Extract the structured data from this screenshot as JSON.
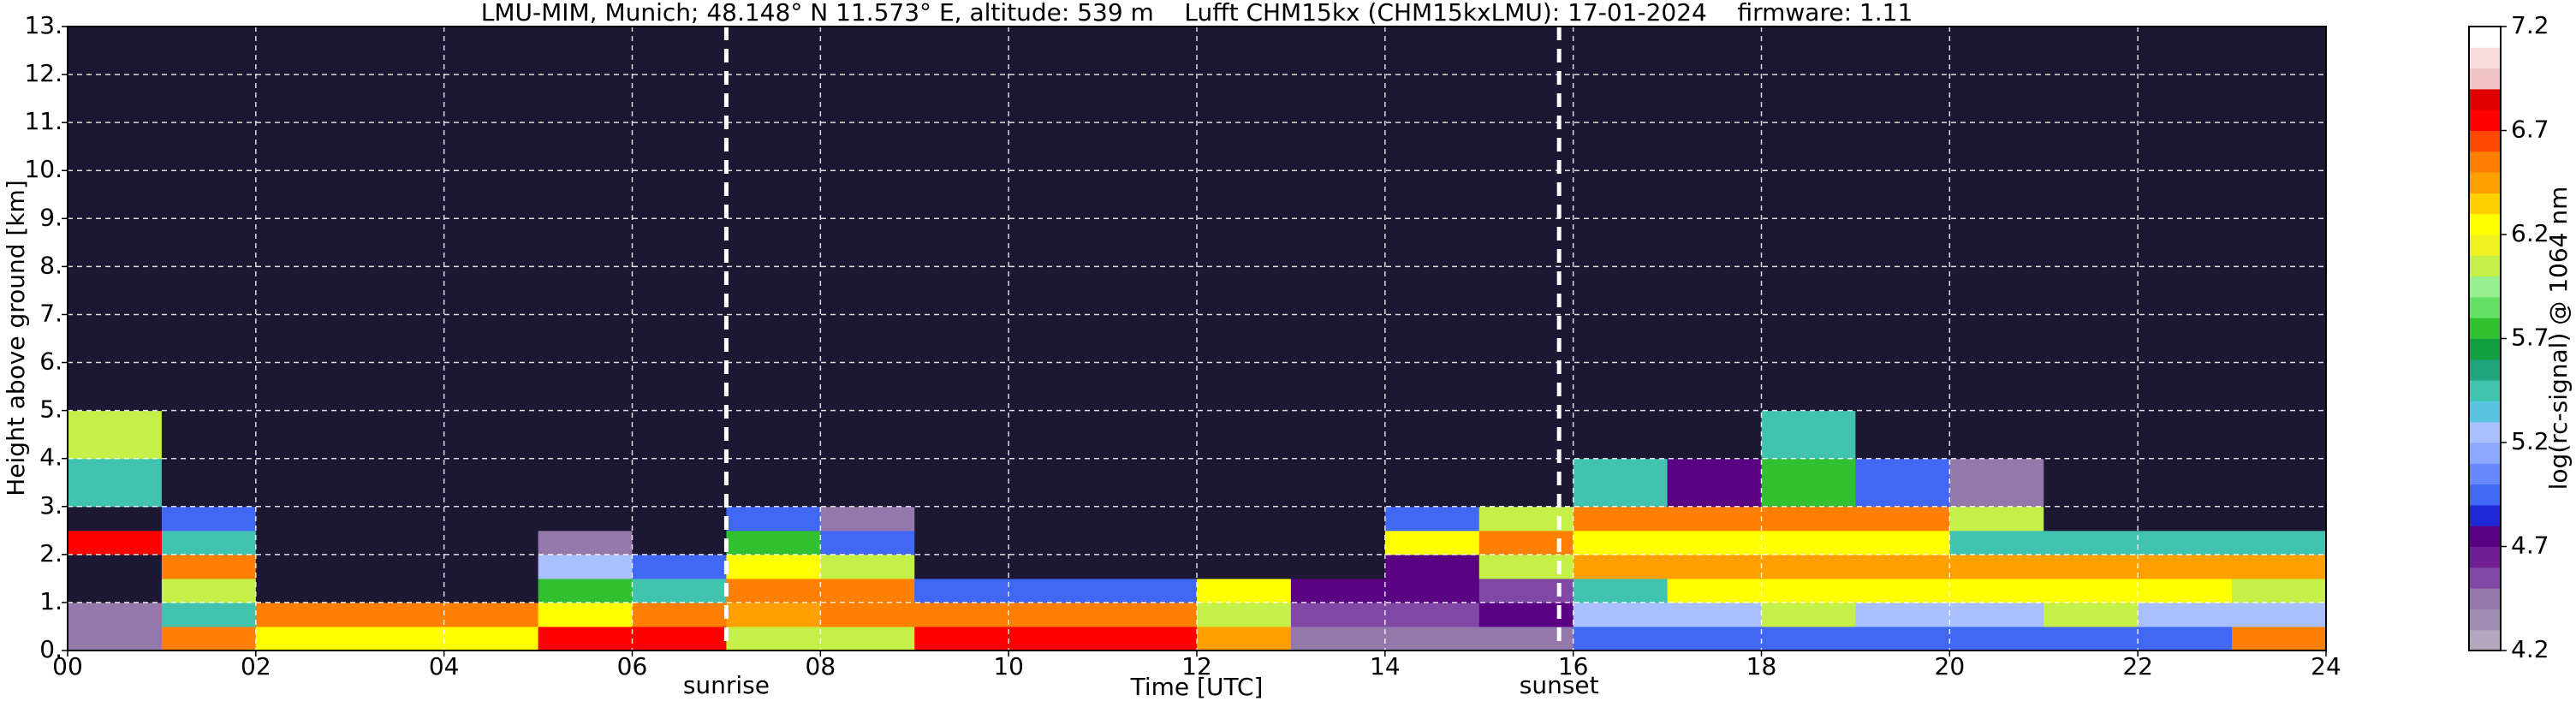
{
  "chart_data": {
    "type": "heatmap",
    "title": "LMU-MIM, Munich; 48.148° N 11.573° E, altitude: 539 m    Lufft CHM15kx (CHM15kxLMU): 17-01-2024    firmware: 1.11",
    "xlabel": "Time [UTC]",
    "ylabel": "Height above ground [km]",
    "colorbar_label": "log(rc-signal) @ 1064 nm",
    "xlim": [
      0,
      24
    ],
    "xticks": [
      {
        "value": 0,
        "label": "00"
      },
      {
        "value": 2,
        "label": "02"
      },
      {
        "value": 4,
        "label": "04"
      },
      {
        "value": 6,
        "label": "06"
      },
      {
        "value": 8,
        "label": "08"
      },
      {
        "value": 10,
        "label": "10"
      },
      {
        "value": 12,
        "label": "12"
      },
      {
        "value": 14,
        "label": "14"
      },
      {
        "value": 16,
        "label": "16"
      },
      {
        "value": 18,
        "label": "18"
      },
      {
        "value": 20,
        "label": "20"
      },
      {
        "value": 22,
        "label": "22"
      },
      {
        "value": 24,
        "label": "24"
      }
    ],
    "ylim": [
      0,
      13
    ],
    "yticks": [
      {
        "value": 0,
        "label": "0."
      },
      {
        "value": 1,
        "label": "1."
      },
      {
        "value": 2,
        "label": "2."
      },
      {
        "value": 3,
        "label": "3."
      },
      {
        "value": 4,
        "label": "4."
      },
      {
        "value": 5,
        "label": "5."
      },
      {
        "value": 6,
        "label": "6."
      },
      {
        "value": 7,
        "label": "7."
      },
      {
        "value": 8,
        "label": "8."
      },
      {
        "value": 9,
        "label": "9."
      },
      {
        "value": 10,
        "label": "10."
      },
      {
        "value": 11,
        "label": "11."
      },
      {
        "value": 12,
        "label": "12."
      },
      {
        "value": 13,
        "label": "13."
      }
    ],
    "zlim": [
      4.2,
      7.2
    ],
    "zticks": [
      4.2,
      4.7,
      5.2,
      5.7,
      6.2,
      6.7,
      7.2
    ],
    "grid": true,
    "under_color": "#1c1733",
    "colormap": [
      "#b4a6bc",
      "#a08cb2",
      "#9478ac",
      "#8048a4",
      "#701e94",
      "#5a0082",
      "#1e28d8",
      "#4068f4",
      "#6888ff",
      "#8ca8ff",
      "#a8c0ff",
      "#58c4e0",
      "#40c4b0",
      "#20a47c",
      "#10a040",
      "#30c030",
      "#64e064",
      "#98f090",
      "#c4f048",
      "#f0f020",
      "#ffff00",
      "#ffd000",
      "#ffa000",
      "#ff8000",
      "#ff4800",
      "#ff0000",
      "#e00000",
      "#f0c4c4",
      "#f8dcdc",
      "#ffffff"
    ],
    "x_bins": [
      0,
      1,
      2,
      3,
      4,
      5,
      6,
      7,
      8,
      9,
      10,
      11,
      12,
      13,
      14,
      15,
      16,
      17,
      18,
      19,
      20,
      21,
      22,
      23,
      24
    ],
    "y_bins": [
      0,
      0.5,
      1,
      1.5,
      2,
      2.5,
      3,
      4,
      5,
      13
    ],
    "values": [
      [
        4.4,
        6.5,
        6.3,
        6.3,
        6.3,
        6.8,
        6.8,
        6.0,
        6.0,
        6.8,
        6.8,
        6.8,
        6.4,
        4.5,
        4.5,
        4.5,
        5.0,
        5.0,
        5.0,
        5.0,
        5.0,
        5.0,
        5.0,
        6.5
      ],
      [
        4.5,
        5.5,
        6.5,
        6.5,
        6.5,
        6.3,
        6.6,
        6.4,
        6.5,
        6.5,
        6.5,
        6.5,
        6.0,
        4.6,
        4.6,
        4.8,
        5.2,
        5.2,
        6.0,
        5.2,
        5.2,
        6.0,
        5.2,
        5.2
      ],
      [
        4.0,
        6.0,
        4.0,
        4.0,
        4.0,
        5.8,
        5.5,
        6.5,
        6.6,
        5.0,
        5.0,
        5.0,
        6.2,
        4.7,
        4.7,
        4.6,
        5.5,
        6.3,
        6.3,
        6.3,
        6.3,
        6.3,
        6.3,
        6.0
      ],
      [
        4.0,
        6.6,
        4.0,
        4.0,
        4.0,
        5.3,
        5.0,
        6.3,
        6.0,
        4.0,
        4.0,
        4.0,
        4.0,
        4.0,
        4.8,
        6.0,
        6.4,
        6.4,
        6.4,
        6.4,
        6.4,
        6.4,
        6.4,
        6.4
      ],
      [
        6.8,
        5.5,
        4.0,
        4.0,
        4.0,
        4.5,
        4.0,
        5.8,
        5.0,
        4.0,
        4.0,
        4.0,
        4.0,
        4.0,
        6.2,
        6.5,
        6.2,
        6.2,
        6.2,
        6.2,
        5.5,
        5.5,
        5.5,
        5.5
      ],
      [
        4.0,
        5.0,
        4.0,
        4.0,
        4.0,
        4.0,
        4.0,
        5.0,
        4.5,
        4.0,
        4.0,
        4.0,
        4.0,
        4.0,
        5.0,
        6.0,
        6.5,
        6.5,
        6.5,
        6.5,
        6.0,
        4.0,
        4.0,
        4.0
      ],
      [
        5.5,
        4.0,
        4.0,
        4.0,
        4.0,
        4.0,
        4.0,
        4.0,
        4.0,
        4.0,
        4.0,
        4.0,
        4.0,
        4.0,
        4.0,
        4.0,
        5.5,
        4.8,
        5.8,
        5.0,
        4.5,
        4.0,
        4.0,
        4.0
      ],
      [
        6.0,
        4.0,
        4.0,
        4.0,
        4.0,
        4.0,
        4.0,
        4.0,
        4.0,
        4.0,
        4.0,
        4.0,
        4.0,
        4.0,
        4.0,
        4.0,
        4.0,
        4.0,
        5.5,
        4.0,
        4.0,
        4.0,
        4.0,
        4.0
      ],
      [
        4.0,
        4.0,
        4.0,
        4.0,
        4.0,
        4.0,
        4.0,
        4.0,
        4.0,
        4.0,
        4.0,
        4.0,
        4.0,
        4.0,
        4.0,
        4.0,
        4.0,
        4.0,
        4.0,
        4.0,
        4.0,
        4.0,
        4.0,
        4.0
      ]
    ],
    "annotations": [
      {
        "x": 7.0,
        "text": "sunrise"
      },
      {
        "x": 15.85,
        "text": "sunset"
      }
    ]
  }
}
